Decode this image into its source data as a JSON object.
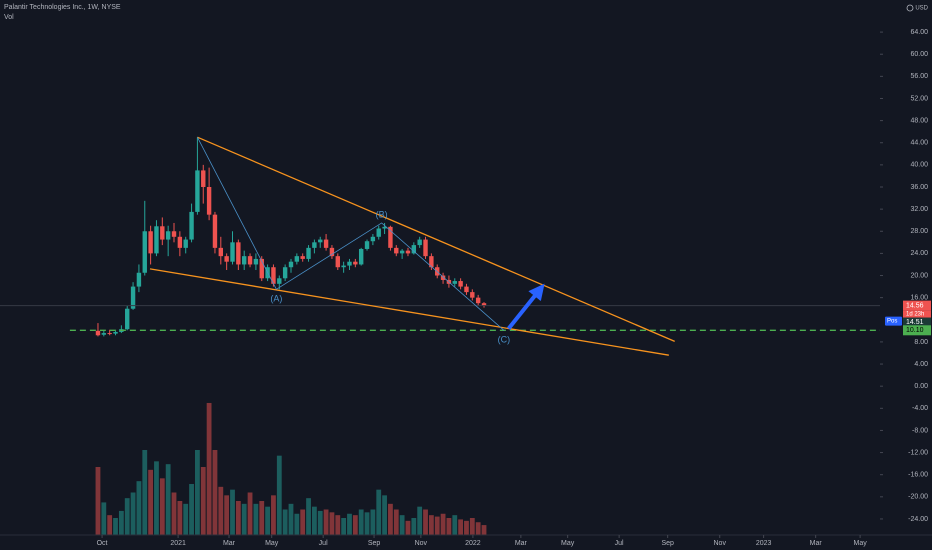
{
  "chart_data": {
    "type": "candlestick",
    "title": "Palantir Technologies Inc., 1W, NYSE",
    "volume_label": "Vol",
    "currency": "USD",
    "up_color": "#26a69a",
    "down_color": "#ef5350",
    "x": [
      0,
      1,
      2,
      3,
      4,
      5,
      6,
      7,
      8,
      9,
      10,
      11,
      12,
      13,
      14,
      15,
      16,
      17,
      18,
      19,
      20,
      21,
      22,
      23,
      24,
      25,
      26,
      27,
      28,
      29,
      30,
      31,
      32,
      33,
      34,
      35,
      36,
      37,
      38,
      39,
      40,
      41,
      42,
      43,
      44,
      45,
      46,
      47,
      48,
      49,
      50,
      51,
      52,
      53,
      54,
      55,
      56,
      57,
      58,
      59,
      60,
      61,
      62,
      63,
      64,
      65,
      66
    ],
    "open": [
      10.0,
      9.3,
      9.6,
      9.5,
      9.8,
      10.3,
      14.0,
      18.0,
      20.5,
      28.0,
      24.0,
      28.9,
      26.5,
      28.0,
      27.0,
      25.0,
      26.5,
      31.5,
      39.0,
      36.0,
      31.0,
      25.0,
      23.5,
      22.5,
      26.0,
      22.0,
      23.5,
      22.0,
      23.0,
      19.5,
      21.5,
      18.5,
      19.5,
      21.5,
      22.5,
      23.5,
      23.0,
      25.0,
      26.0,
      26.5,
      25.0,
      23.5,
      21.5,
      21.8,
      22.5,
      22.0,
      24.8,
      26.2,
      27.0,
      28.5,
      28.8,
      25.0,
      24.0,
      24.5,
      24.0,
      25.5,
      26.5,
      23.5,
      21.5,
      20.0,
      19.2,
      18.5,
      19.0,
      18.0,
      17.0,
      16.0,
      15.0
    ],
    "high": [
      11.4,
      10.0,
      10.2,
      10.0,
      11.0,
      14.5,
      18.8,
      22.0,
      33.5,
      29.0,
      30.0,
      30.5,
      29.0,
      29.5,
      28.0,
      27.0,
      33.0,
      45.0,
      40.0,
      39.5,
      31.5,
      27.0,
      24.0,
      28.0,
      26.5,
      24.5,
      24.0,
      24.0,
      23.5,
      22.0,
      22.0,
      20.0,
      22.0,
      23.0,
      24.0,
      24.0,
      25.5,
      26.5,
      27.0,
      27.5,
      25.5,
      24.0,
      22.5,
      23.0,
      23.0,
      25.0,
      26.5,
      27.5,
      29.0,
      29.5,
      29.0,
      25.5,
      24.8,
      25.0,
      26.0,
      27.0,
      27.0,
      24.0,
      22.0,
      20.5,
      20.0,
      19.5,
      19.5,
      18.5,
      17.5,
      16.5,
      15.2
    ],
    "low": [
      9.0,
      9.0,
      9.2,
      9.2,
      9.6,
      10.1,
      13.8,
      17.0,
      20.0,
      22.0,
      23.5,
      25.5,
      23.5,
      26.0,
      23.5,
      24.0,
      26.0,
      31.0,
      33.0,
      30.0,
      24.0,
      22.0,
      21.0,
      22.0,
      21.0,
      21.0,
      21.5,
      21.0,
      19.0,
      19.0,
      18.0,
      17.5,
      19.0,
      20.5,
      22.0,
      22.5,
      22.5,
      24.0,
      25.0,
      24.5,
      23.0,
      21.0,
      20.5,
      21.0,
      21.5,
      21.8,
      24.5,
      25.5,
      26.5,
      27.5,
      24.5,
      23.5,
      23.0,
      23.5,
      23.8,
      25.0,
      23.0,
      21.0,
      19.5,
      18.5,
      17.8,
      18.0,
      17.5,
      16.5,
      15.5,
      14.6,
      14.2
    ],
    "close": [
      9.2,
      9.6,
      9.5,
      9.8,
      10.3,
      14.0,
      18.0,
      20.5,
      28.0,
      24.0,
      28.9,
      26.5,
      28.0,
      27.0,
      25.0,
      26.5,
      31.5,
      39.0,
      36.0,
      31.0,
      25.0,
      23.5,
      22.5,
      26.0,
      22.0,
      23.5,
      22.0,
      23.0,
      19.5,
      21.5,
      18.5,
      19.5,
      21.5,
      22.5,
      23.5,
      23.0,
      25.0,
      26.0,
      26.5,
      25.0,
      23.5,
      21.5,
      21.8,
      22.5,
      22.0,
      24.8,
      26.2,
      27.0,
      28.5,
      28.8,
      25.0,
      24.0,
      24.5,
      24.0,
      25.5,
      26.5,
      23.5,
      21.5,
      20.0,
      19.2,
      18.5,
      19.0,
      18.0,
      17.0,
      16.0,
      15.0,
      14.56
    ],
    "volume": [
      240,
      115,
      70,
      60,
      85,
      130,
      150,
      190,
      300,
      230,
      260,
      200,
      250,
      150,
      120,
      110,
      180,
      300,
      240,
      466,
      300,
      170,
      140,
      160,
      120,
      110,
      150,
      110,
      120,
      100,
      140,
      280,
      90,
      110,
      75,
      90,
      130,
      100,
      85,
      90,
      80,
      70,
      60,
      75,
      70,
      90,
      80,
      90,
      160,
      140,
      110,
      90,
      70,
      50,
      60,
      100,
      90,
      70,
      65,
      75,
      60,
      70,
      55,
      50,
      60,
      45,
      35
    ],
    "volume_ylim": [
      0,
      600
    ],
    "xlim": [
      -16.75,
      133.7
    ],
    "xticks": [
      {
        "value": 0.7,
        "label": "Oct"
      },
      {
        "value": 13.7,
        "label": "2021"
      },
      {
        "value": 22.4,
        "label": "Mar"
      },
      {
        "value": 29.7,
        "label": "May"
      },
      {
        "value": 38.5,
        "label": "Jul"
      },
      {
        "value": 47.2,
        "label": "Sep"
      },
      {
        "value": 55.2,
        "label": "Nov"
      },
      {
        "value": 64.1,
        "label": "2022"
      },
      {
        "value": 72.3,
        "label": "Mar"
      },
      {
        "value": 80.3,
        "label": "May"
      },
      {
        "value": 89.1,
        "label": "Jul"
      },
      {
        "value": 97.4,
        "label": "Sep"
      },
      {
        "value": 106.3,
        "label": "Nov"
      },
      {
        "value": 113.8,
        "label": "2023"
      },
      {
        "value": 122.7,
        "label": "Mar"
      },
      {
        "value": 130.3,
        "label": "May"
      }
    ],
    "ylim": [
      -26.9,
      69.8
    ],
    "yticks": [
      {
        "value": 64,
        "label": "64.00"
      },
      {
        "value": 60,
        "label": "60.00"
      },
      {
        "value": 56,
        "label": "56.00"
      },
      {
        "value": 52,
        "label": "52.00"
      },
      {
        "value": 48,
        "label": "48.00"
      },
      {
        "value": 44,
        "label": "44.00"
      },
      {
        "value": 40,
        "label": "40.00"
      },
      {
        "value": 36,
        "label": "36.00"
      },
      {
        "value": 32,
        "label": "32.00"
      },
      {
        "value": 28,
        "label": "28.00"
      },
      {
        "value": 24,
        "label": "24.00"
      },
      {
        "value": 20,
        "label": "20.00"
      },
      {
        "value": 16,
        "label": "16.00"
      },
      {
        "value": 8,
        "label": "8.00"
      },
      {
        "value": 4,
        "label": "4.00"
      },
      {
        "value": 0,
        "label": "0.00"
      },
      {
        "value": -4,
        "label": "-4.00"
      },
      {
        "value": -8,
        "label": "-8.00"
      },
      {
        "value": -12,
        "label": "-12.00"
      },
      {
        "value": -16,
        "label": "-16.00"
      },
      {
        "value": -20,
        "label": "-20.00"
      },
      {
        "value": -24,
        "label": "-24.00"
      }
    ],
    "grid": false,
    "trendlines": [
      {
        "x": [
          17,
          98.6
        ],
        "y": [
          45,
          8.1
        ],
        "color": "#f7931e"
      },
      {
        "x": [
          8.9,
          97.6
        ],
        "y": [
          21.2,
          5.6
        ],
        "color": "#f7931e"
      }
    ],
    "waves": {
      "x": [
        17,
        30.5,
        48.5,
        69.4
      ],
      "y": [
        45,
        17.5,
        29.5,
        10.1
      ],
      "labels": [
        null,
        "(A)",
        "(B)",
        "(C)"
      ],
      "color": "#4a90c8"
    },
    "arrow": {
      "x": [
        70.2,
        75.5
      ],
      "y": [
        10.4,
        17.4
      ],
      "color": "#2962ff"
    },
    "hline": {
      "value": 10.1,
      "label": "10.10",
      "from_x": -4.8,
      "color": "#4caf50"
    },
    "last_price": 14.56,
    "countdown": "1d 23h",
    "second_price": 14.51,
    "position_label": "Pos"
  }
}
